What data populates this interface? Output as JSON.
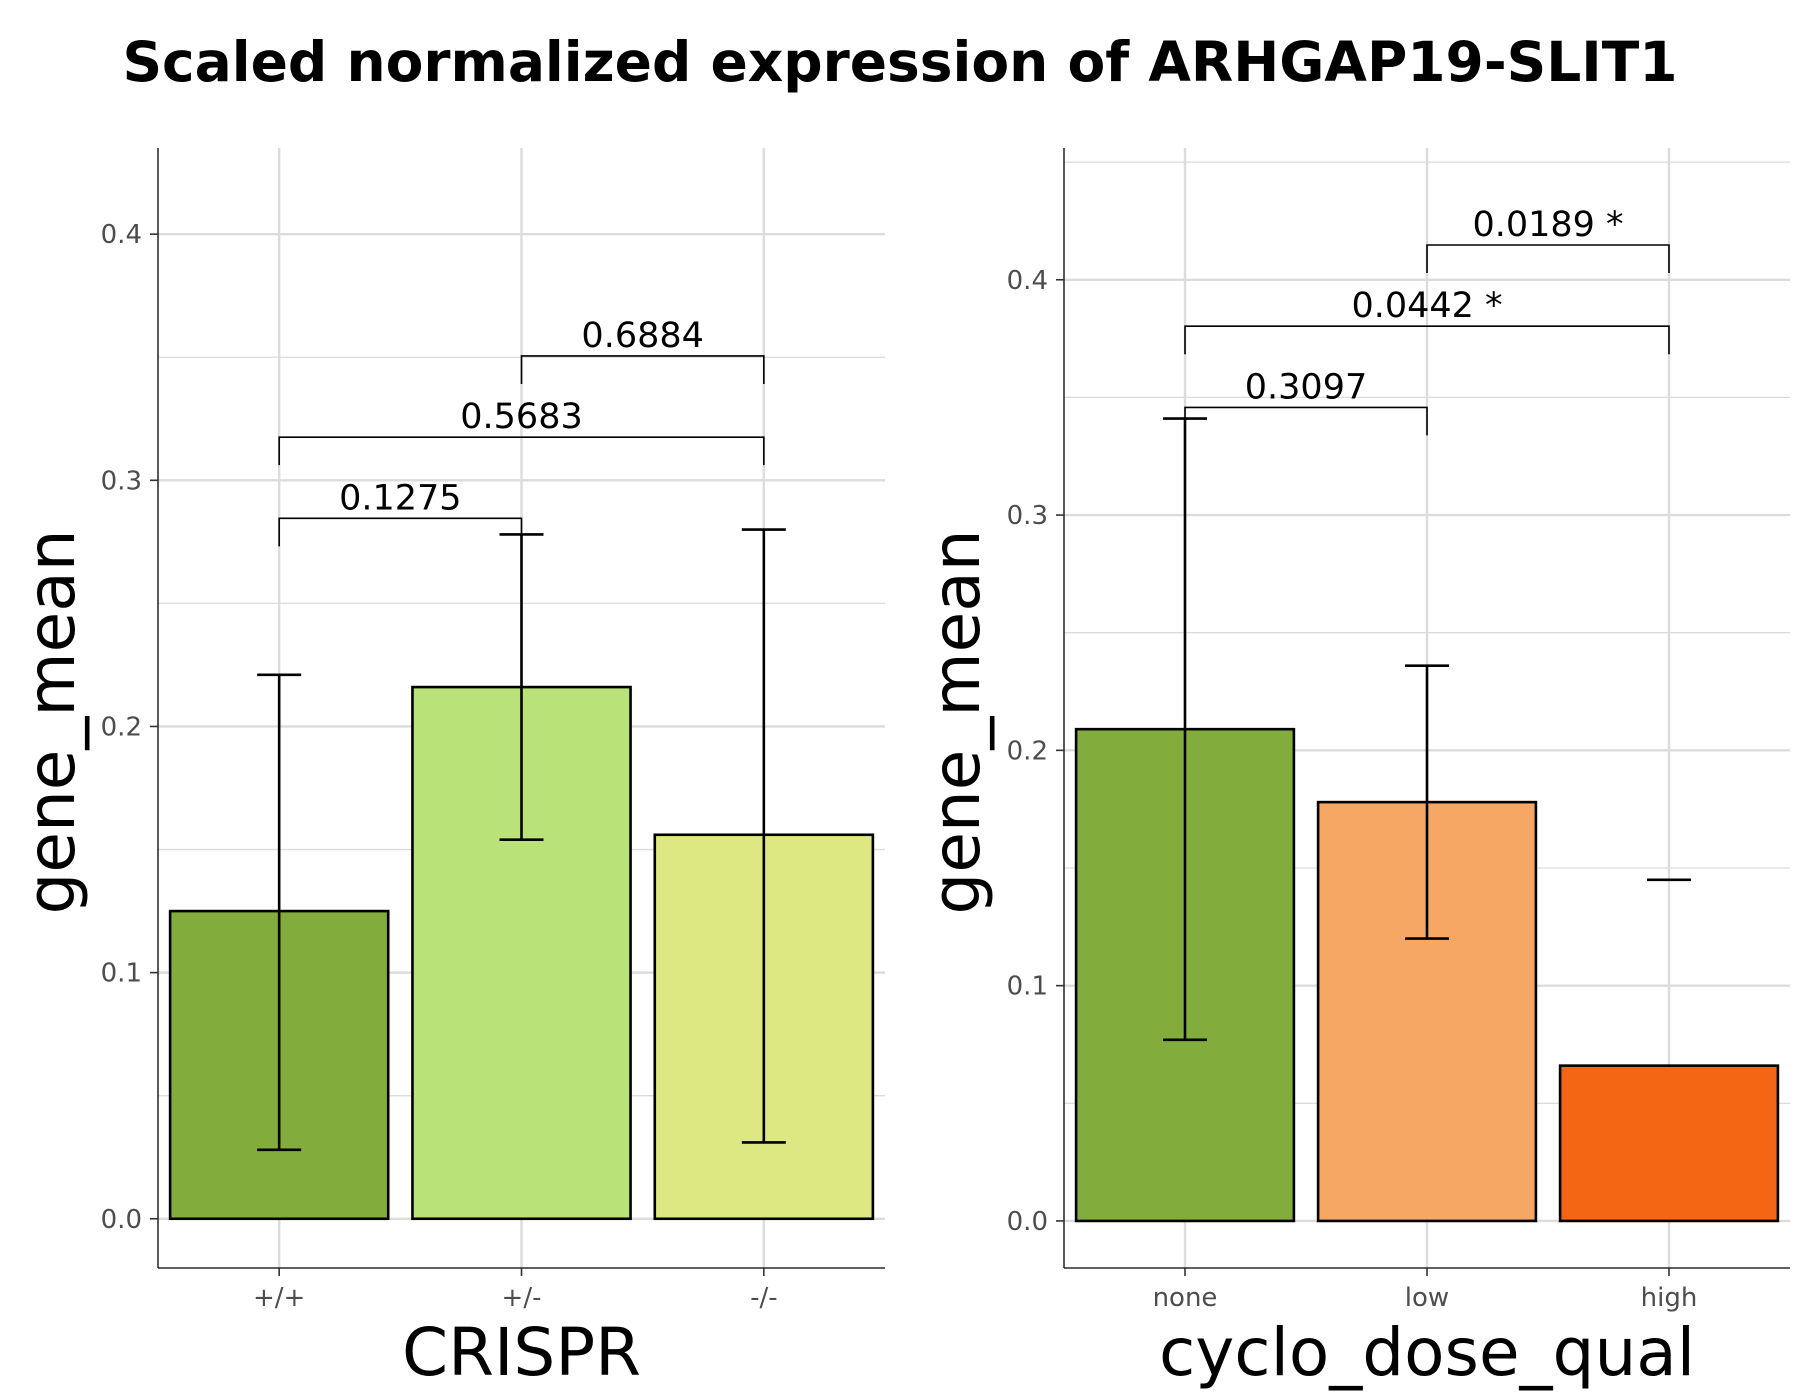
{
  "title": "Scaled normalized expression of ARHGAP19-SLIT1",
  "chart_data": [
    {
      "type": "bar",
      "xlabel": "CRISPR",
      "ylabel": "gene_mean",
      "categories": [
        "+/+",
        "+/-",
        "-/-"
      ],
      "values": [
        0.125,
        0.216,
        0.156
      ],
      "error_low": [
        0.028,
        0.154,
        0.031
      ],
      "error_high": [
        0.221,
        0.278,
        0.28
      ],
      "colors": [
        "#82AD3C",
        "#B9E278",
        "#DDE883"
      ],
      "ylim": [
        -0.02,
        0.435
      ],
      "yticks": [
        "0.0",
        "0.1",
        "0.2",
        "0.3",
        "0.4"
      ],
      "comparisons": [
        {
          "from": 0,
          "to": 1,
          "label": "0.1275"
        },
        {
          "from": 0,
          "to": 2,
          "label": "0.5683"
        },
        {
          "from": 1,
          "to": 2,
          "label": "0.6884"
        }
      ],
      "grid": true
    },
    {
      "type": "bar",
      "xlabel": "cyclo_dose_qual",
      "ylabel": "gene_mean",
      "categories": [
        "none",
        "low",
        "high"
      ],
      "values": [
        0.209,
        0.178,
        0.066
      ],
      "error_low": [
        0.077,
        0.12,
        null
      ],
      "error_high": [
        0.341,
        0.236,
        0.145
      ],
      "colors": [
        "#82AD3C",
        "#F5A763",
        "#F56614"
      ],
      "ylim": [
        -0.02,
        0.456
      ],
      "yticks": [
        "0.0",
        "0.1",
        "0.2",
        "0.3",
        "0.4"
      ],
      "comparisons": [
        {
          "from": 0,
          "to": 1,
          "label": "0.3097"
        },
        {
          "from": 0,
          "to": 2,
          "label": "0.0442 *"
        },
        {
          "from": 1,
          "to": 2,
          "label": "0.0189 *"
        }
      ],
      "grid": true
    }
  ]
}
